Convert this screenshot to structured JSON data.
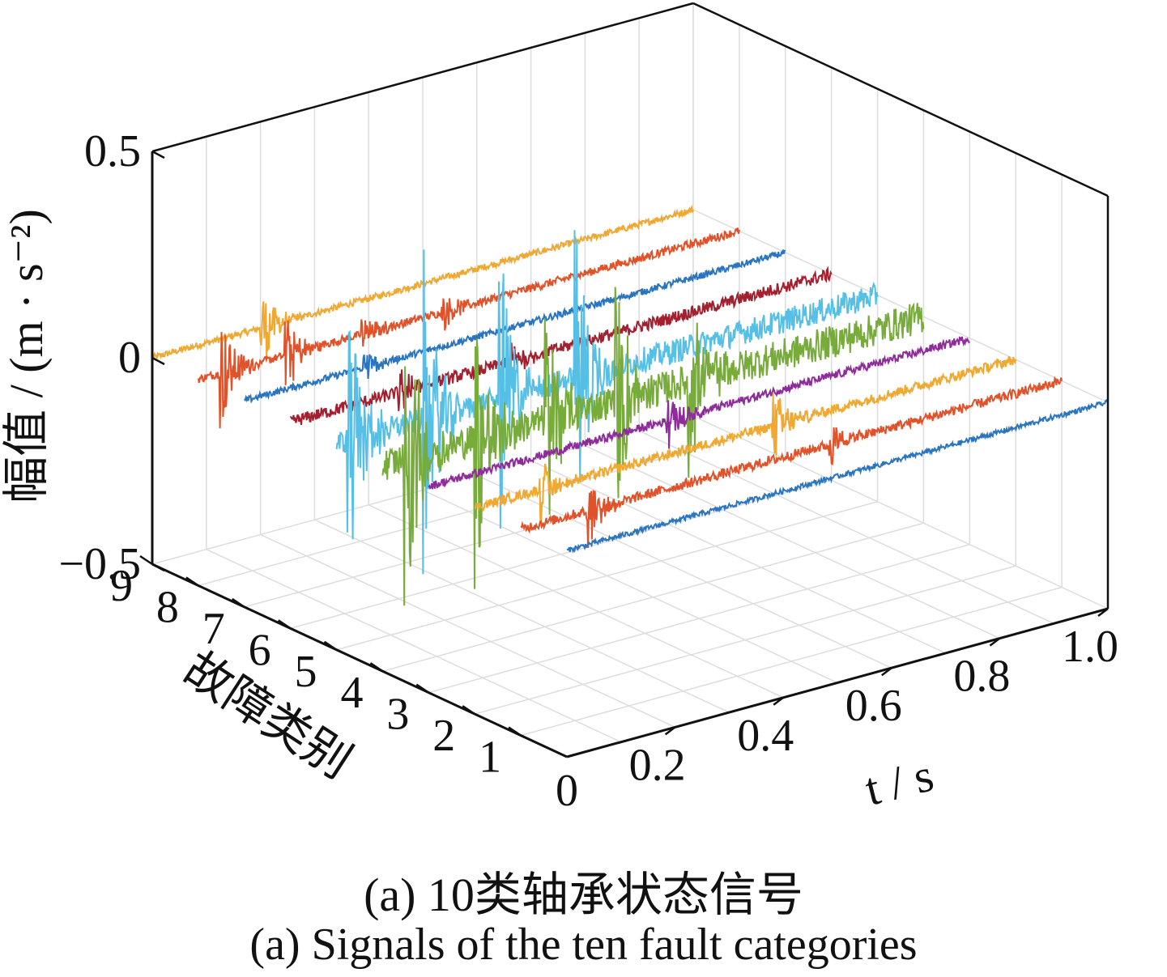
{
  "chart_data": {
    "type": "line",
    "projection": "3d",
    "title": "",
    "xlabel": "t / s",
    "ylabel": "故障类别",
    "zlabel": "幅值 / (m · s⁻²)",
    "x_ticks": [
      "0.2",
      "0.4",
      "0.6",
      "0.8",
      "1.0"
    ],
    "origin_tick": "0",
    "y_ticks": [
      "1",
      "2",
      "3",
      "4",
      "5",
      "6",
      "7",
      "8",
      "9"
    ],
    "z_ticks": [
      "−0.5",
      "0",
      "0.5"
    ],
    "xlim": [
      0,
      1.0
    ],
    "ylim": [
      0,
      9
    ],
    "zlim": [
      -0.5,
      0.5
    ],
    "grid": true,
    "series": [
      {
        "category": 0,
        "color": "#2a74c0",
        "bursts": [],
        "noise": 0.006
      },
      {
        "category": 1,
        "color": "#e0522a",
        "bursts": [
          {
            "t": 0.12,
            "amp": 0.1
          },
          {
            "t": 0.57,
            "amp": 0.06
          }
        ],
        "noise": 0.012
      },
      {
        "category": 2,
        "color": "#f0a830",
        "bursts": [
          {
            "t": 0.12,
            "amp": 0.08
          },
          {
            "t": 0.55,
            "amp": 0.1
          }
        ],
        "noise": 0.012
      },
      {
        "category": 3,
        "color": "#8e2d9a",
        "bursts": [
          {
            "t": 0.44,
            "amp": 0.08
          }
        ],
        "noise": 0.01
      },
      {
        "category": 4,
        "color": "#77ab3a",
        "bursts": [
          {
            "t": 0.04,
            "amp": 0.45
          },
          {
            "t": 0.17,
            "amp": 0.4
          },
          {
            "t": 0.3,
            "amp": 0.32
          },
          {
            "t": 0.43,
            "amp": 0.35
          },
          {
            "t": 0.56,
            "amp": 0.3
          }
        ],
        "noise": 0.04
      },
      {
        "category": 5,
        "color": "#56bfe6",
        "bursts": [
          {
            "t": 0.02,
            "amp": 0.38
          },
          {
            "t": 0.16,
            "amp": 0.42
          },
          {
            "t": 0.3,
            "amp": 0.4
          },
          {
            "t": 0.44,
            "amp": 0.44
          }
        ],
        "noise": 0.03
      },
      {
        "category": 6,
        "color": "#a3202f",
        "bursts": [
          {
            "t": 0.2,
            "amp": 0.06
          },
          {
            "t": 0.4,
            "amp": 0.06
          }
        ],
        "noise": 0.015
      },
      {
        "category": 7,
        "color": "#2a74c0",
        "bursts": [
          {
            "t": 0.22,
            "amp": 0.05
          }
        ],
        "noise": 0.008
      },
      {
        "category": 8,
        "color": "#e0522a",
        "bursts": [
          {
            "t": 0.04,
            "amp": 0.15
          },
          {
            "t": 0.16,
            "amp": 0.12
          },
          {
            "t": 0.3,
            "amp": 0.05
          },
          {
            "t": 0.45,
            "amp": 0.05
          }
        ],
        "noise": 0.01
      },
      {
        "category": 9,
        "color": "#f0a830",
        "bursts": [
          {
            "t": 0.2,
            "amp": 0.12
          }
        ],
        "noise": 0.008
      }
    ]
  },
  "caption": {
    "cn": "(a)  10类轴承状态信号",
    "en": "(a)  Signals of the ten fault categories"
  }
}
